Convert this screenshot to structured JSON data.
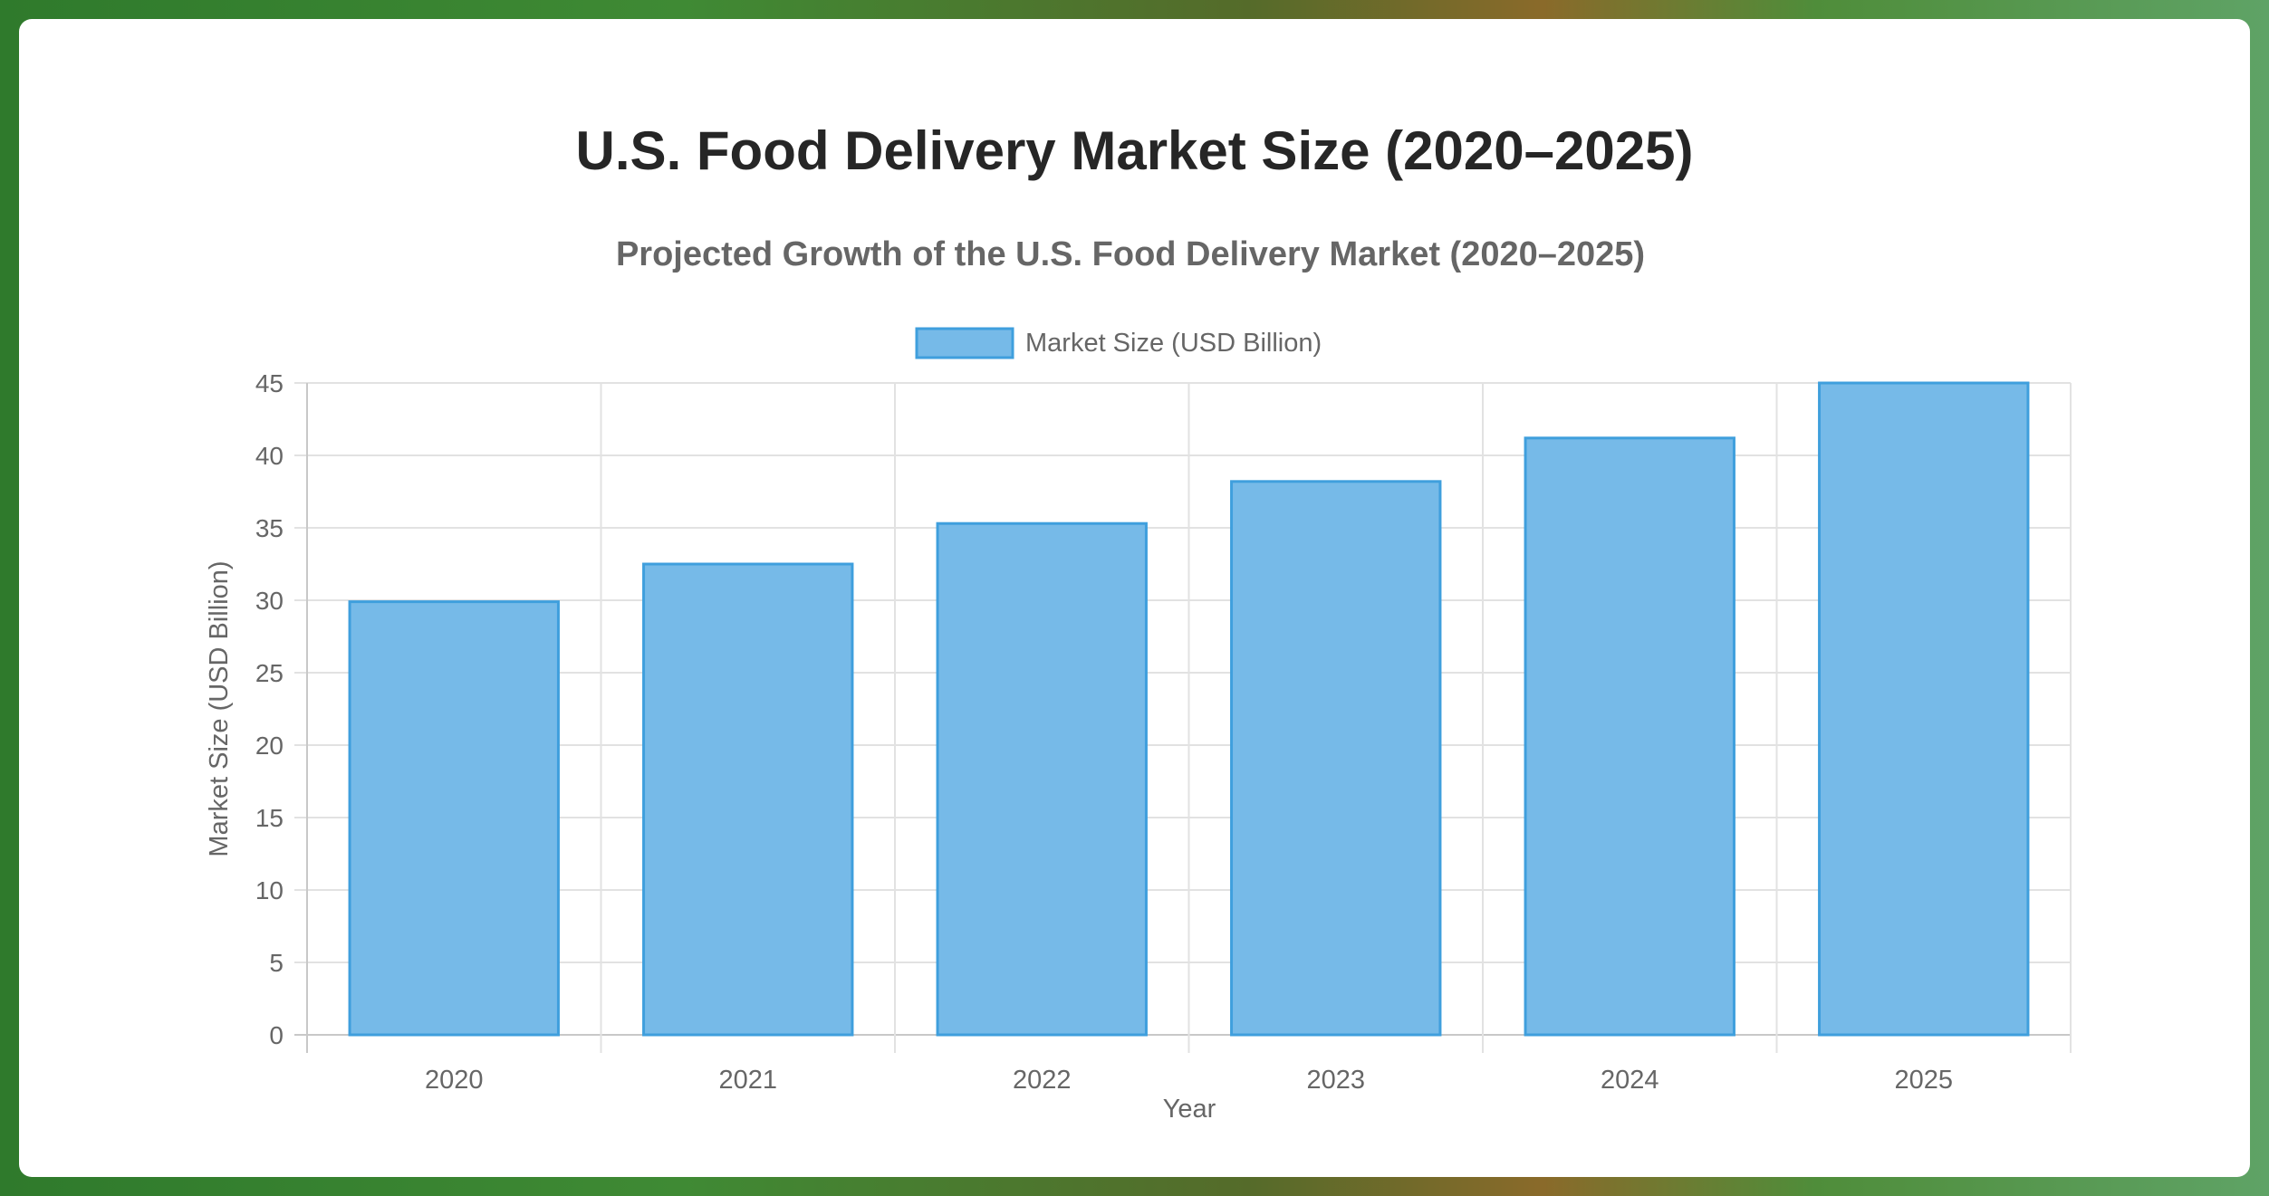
{
  "page": {
    "title": "U.S. Food Delivery Market Size (2020–2025)"
  },
  "colors": {
    "bar_fill": "#76BAE8",
    "bar_stroke": "#3F9FDD",
    "grid": "#e2e2e2",
    "text": "#666666"
  },
  "chart_data": {
    "type": "bar",
    "title": "Projected Growth of the U.S. Food Delivery Market (2020–2025)",
    "xlabel": "Year",
    "ylabel": "Market Size (USD Billion)",
    "categories": [
      "2020",
      "2021",
      "2022",
      "2023",
      "2024",
      "2025"
    ],
    "series": [
      {
        "name": "Market Size (USD Billion)",
        "values": [
          29.9,
          32.5,
          35.3,
          38.2,
          41.2,
          45.0
        ]
      }
    ],
    "ylim": [
      0,
      45
    ],
    "yticks": [
      0,
      5,
      10,
      15,
      20,
      25,
      30,
      35,
      40,
      45
    ],
    "grid": true,
    "legend_position": "top-center"
  }
}
